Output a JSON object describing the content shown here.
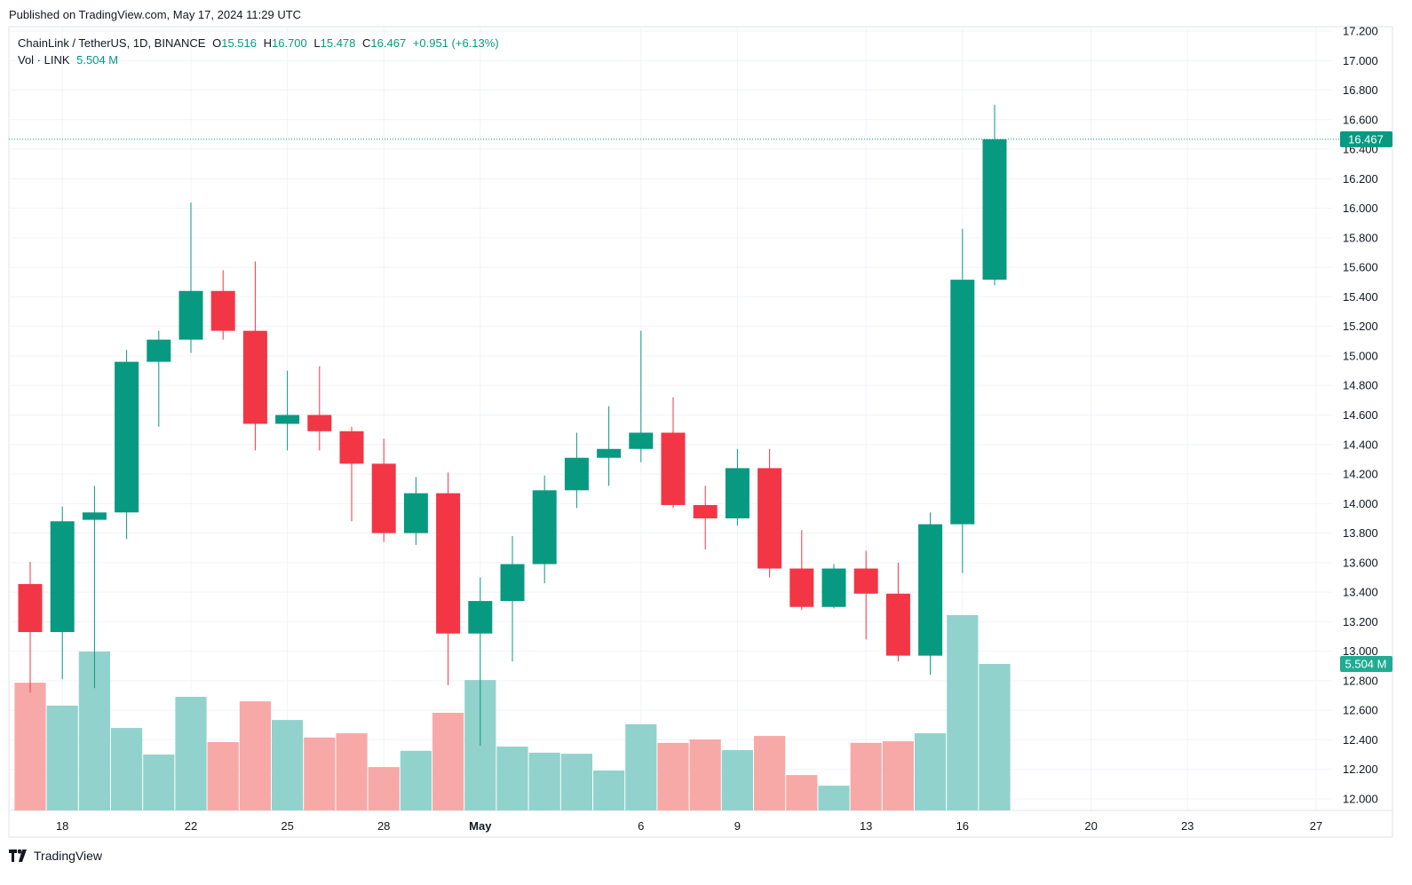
{
  "published": "Published on TradingView.com, May 17, 2024 11:29 UTC",
  "legend": {
    "symbol": "ChainLink / TetherUS, 1D, BINANCE",
    "o_label": "O",
    "o": "15.516",
    "h_label": "H",
    "h": "16.700",
    "l_label": "L",
    "l": "15.478",
    "c_label": "C",
    "c": "16.467",
    "change": "+0.951 (+6.13%)",
    "vol_label": "Vol · LINK",
    "vol": "5.504 M"
  },
  "brand": "TradingView",
  "colors": {
    "up": "#089981",
    "down": "#F23645",
    "vol_up": "#92D2CC",
    "vol_down": "#F7A9A7",
    "grid": "#F0F3FA"
  },
  "chart_data": {
    "type": "candlestick",
    "title": "ChainLink / TetherUS, 1D, BINANCE",
    "ylim": [
      11.95,
      17.25
    ],
    "yticks": [
      "12.000",
      "12.200",
      "12.400",
      "12.600",
      "12.800",
      "13.000",
      "13.200",
      "13.400",
      "13.600",
      "13.800",
      "14.000",
      "14.200",
      "14.400",
      "14.600",
      "14.800",
      "15.000",
      "15.200",
      "15.400",
      "15.600",
      "15.800",
      "16.000",
      "16.200",
      "16.400",
      "16.600",
      "16.800",
      "17.000",
      "17.200"
    ],
    "xticks": [
      {
        "label": "18",
        "day": 1,
        "bold": false
      },
      {
        "label": "22",
        "day": 5,
        "bold": false
      },
      {
        "label": "25",
        "day": 8,
        "bold": false
      },
      {
        "label": "28",
        "day": 11,
        "bold": false
      },
      {
        "label": "May",
        "day": 14,
        "bold": true
      },
      {
        "label": "6",
        "day": 19,
        "bold": false
      },
      {
        "label": "9",
        "day": 22,
        "bold": false
      },
      {
        "label": "13",
        "day": 26,
        "bold": false
      },
      {
        "label": "16",
        "day": 29,
        "bold": false
      },
      {
        "label": "20",
        "day": 33,
        "bold": false
      },
      {
        "label": "23",
        "day": 36,
        "bold": false
      },
      {
        "label": "27",
        "day": 40,
        "bold": false
      }
    ],
    "last_price_label": "16.467",
    "last_volume_label": "5.504 M",
    "candles": [
      {
        "date": "2024-04-17",
        "o": 13.455,
        "h": 13.605,
        "l": 12.72,
        "c": 13.13,
        "v": 4.8
      },
      {
        "date": "2024-04-18",
        "o": 13.13,
        "h": 13.98,
        "l": 12.81,
        "c": 13.88,
        "v": 3.94
      },
      {
        "date": "2024-04-19",
        "o": 13.89,
        "h": 14.12,
        "l": 12.75,
        "c": 13.94,
        "v": 5.97
      },
      {
        "date": "2024-04-20",
        "o": 13.94,
        "h": 15.04,
        "l": 13.76,
        "c": 14.96,
        "v": 3.1
      },
      {
        "date": "2024-04-21",
        "o": 14.96,
        "h": 15.17,
        "l": 14.52,
        "c": 15.11,
        "v": 2.1
      },
      {
        "date": "2024-04-22",
        "o": 15.11,
        "h": 16.04,
        "l": 15.02,
        "c": 15.44,
        "v": 4.27
      },
      {
        "date": "2024-04-23",
        "o": 15.44,
        "h": 15.58,
        "l": 15.11,
        "c": 15.17,
        "v": 2.57
      },
      {
        "date": "2024-04-24",
        "o": 15.17,
        "h": 15.64,
        "l": 14.36,
        "c": 14.54,
        "v": 4.1
      },
      {
        "date": "2024-04-25",
        "o": 14.54,
        "h": 14.9,
        "l": 14.36,
        "c": 14.6,
        "v": 3.4
      },
      {
        "date": "2024-04-26",
        "o": 14.6,
        "h": 14.93,
        "l": 14.36,
        "c": 14.49,
        "v": 2.74
      },
      {
        "date": "2024-04-27",
        "o": 14.49,
        "h": 14.52,
        "l": 13.88,
        "c": 14.27,
        "v": 2.9
      },
      {
        "date": "2024-04-28",
        "o": 14.27,
        "h": 14.44,
        "l": 13.74,
        "c": 13.8,
        "v": 1.63
      },
      {
        "date": "2024-04-29",
        "o": 13.8,
        "h": 14.18,
        "l": 13.72,
        "c": 14.07,
        "v": 2.24
      },
      {
        "date": "2024-04-30",
        "o": 14.07,
        "h": 14.21,
        "l": 12.77,
        "c": 13.12,
        "v": 3.67
      },
      {
        "date": "2024-05-01",
        "o": 13.12,
        "h": 13.5,
        "l": 12.36,
        "c": 13.34,
        "v": 4.9
      },
      {
        "date": "2024-05-02",
        "o": 13.34,
        "h": 13.78,
        "l": 12.93,
        "c": 13.59,
        "v": 2.4
      },
      {
        "date": "2024-05-03",
        "o": 13.59,
        "h": 14.19,
        "l": 13.46,
        "c": 14.09,
        "v": 2.17
      },
      {
        "date": "2024-05-04",
        "o": 14.09,
        "h": 14.48,
        "l": 13.97,
        "c": 14.31,
        "v": 2.13
      },
      {
        "date": "2024-05-05",
        "o": 14.31,
        "h": 14.66,
        "l": 14.12,
        "c": 14.37,
        "v": 1.5
      },
      {
        "date": "2024-05-06",
        "o": 14.37,
        "h": 15.17,
        "l": 14.28,
        "c": 14.48,
        "v": 3.24
      },
      {
        "date": "2024-05-07",
        "o": 14.48,
        "h": 14.72,
        "l": 13.97,
        "c": 13.99,
        "v": 2.54
      },
      {
        "date": "2024-05-08",
        "o": 13.99,
        "h": 14.12,
        "l": 13.69,
        "c": 13.9,
        "v": 2.67
      },
      {
        "date": "2024-05-09",
        "o": 13.9,
        "h": 14.37,
        "l": 13.85,
        "c": 14.24,
        "v": 2.27
      },
      {
        "date": "2024-05-10",
        "o": 14.24,
        "h": 14.37,
        "l": 13.5,
        "c": 13.56,
        "v": 2.8
      },
      {
        "date": "2024-05-11",
        "o": 13.56,
        "h": 13.82,
        "l": 13.28,
        "c": 13.3,
        "v": 1.33
      },
      {
        "date": "2024-05-12",
        "o": 13.3,
        "h": 13.59,
        "l": 13.29,
        "c": 13.56,
        "v": 0.93
      },
      {
        "date": "2024-05-13",
        "o": 13.56,
        "h": 13.68,
        "l": 13.08,
        "c": 13.39,
        "v": 2.54
      },
      {
        "date": "2024-05-14",
        "o": 13.39,
        "h": 13.6,
        "l": 12.93,
        "c": 12.97,
        "v": 2.6
      },
      {
        "date": "2024-05-15",
        "o": 12.97,
        "h": 13.94,
        "l": 12.84,
        "c": 13.86,
        "v": 2.9
      },
      {
        "date": "2024-05-16",
        "o": 13.86,
        "h": 15.86,
        "l": 13.53,
        "c": 15.516,
        "v": 7.34
      },
      {
        "date": "2024-05-17",
        "o": 15.516,
        "h": 16.7,
        "l": 15.478,
        "c": 16.467,
        "v": 5.504
      }
    ]
  }
}
